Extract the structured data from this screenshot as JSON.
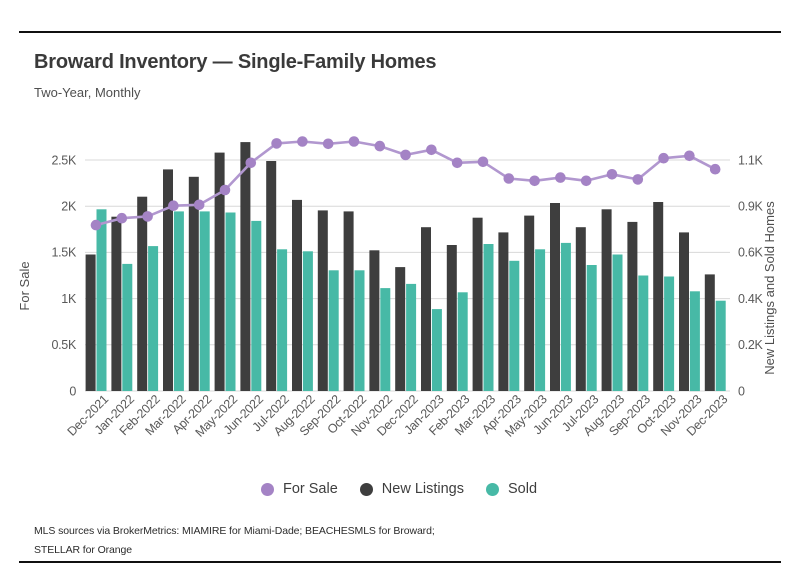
{
  "chart_data": {
    "type": "bar+line",
    "title": "Broward Inventory — Single-Family Homes",
    "subtitle": "Two-Year, Monthly",
    "categories": [
      "Dec-2021",
      "Jan-2022",
      "Feb-2022",
      "Mar-2022",
      "Apr-2022",
      "May-2022",
      "Jun-2022",
      "Jul-2022",
      "Aug-2022",
      "Sep-2022",
      "Oct-2022",
      "Nov-2022",
      "Dec-2022",
      "Jan-2023",
      "Feb-2023",
      "Mar-2023",
      "Apr-2023",
      "May-2023",
      "Jun-2023",
      "Jul-2023",
      "Aug-2023",
      "Sep-2023",
      "Oct-2023",
      "Nov-2023",
      "Dec-2023"
    ],
    "series": [
      {
        "name": "For Sale",
        "type": "line",
        "axis": "left",
        "color": "#a483c5",
        "line_color": "#b197cf",
        "values": [
          1795,
          1870,
          1890,
          2005,
          2015,
          2175,
          2470,
          2680,
          2700,
          2675,
          2700,
          2650,
          2555,
          2610,
          2470,
          2480,
          2300,
          2275,
          2310,
          2275,
          2345,
          2290,
          2520,
          2545,
          2400
        ]
      },
      {
        "name": "New Listings",
        "type": "bar",
        "axis": "right",
        "color": "#3e3e3e",
        "values": [
          650,
          830,
          925,
          1055,
          1020,
          1135,
          1185,
          1095,
          910,
          860,
          855,
          670,
          590,
          780,
          695,
          825,
          755,
          835,
          895,
          780,
          865,
          805,
          900,
          755,
          555
        ]
      },
      {
        "name": "Sold",
        "type": "bar",
        "axis": "right",
        "color": "#47b9a6",
        "values": [
          865,
          605,
          690,
          855,
          855,
          850,
          810,
          675,
          665,
          575,
          575,
          490,
          510,
          390,
          470,
          700,
          620,
          675,
          705,
          600,
          650,
          550,
          545,
          475,
          430
        ]
      }
    ],
    "left_axis": {
      "label": "For Sale",
      "ticks": [
        "0",
        "0.5K",
        "1K",
        "1.5K",
        "2K",
        "2.5K"
      ],
      "tick_values": [
        0,
        500,
        1000,
        1500,
        2000,
        2500
      ],
      "range": [
        0,
        2770
      ]
    },
    "right_axis": {
      "label": "New Listings and Sold Homes",
      "ticks": [
        "0",
        "0.2K",
        "0.4K",
        "0.6K",
        "0.9K",
        "1.1K"
      ],
      "tick_values": [
        0,
        220,
        440,
        660,
        880,
        1100
      ],
      "range": [
        0,
        1219
      ]
    },
    "grid": true,
    "legend_position": "bottom"
  },
  "footer": {
    "line1": "MLS sources via BrokerMetrics: MIAMIRE for Miami-Dade; BEACHESMLS for Broward;",
    "line2": "STELLAR for Orange"
  },
  "colors": {
    "grid": "#d8d8d8",
    "rule": "#101010",
    "axis_text": "#595959"
  }
}
